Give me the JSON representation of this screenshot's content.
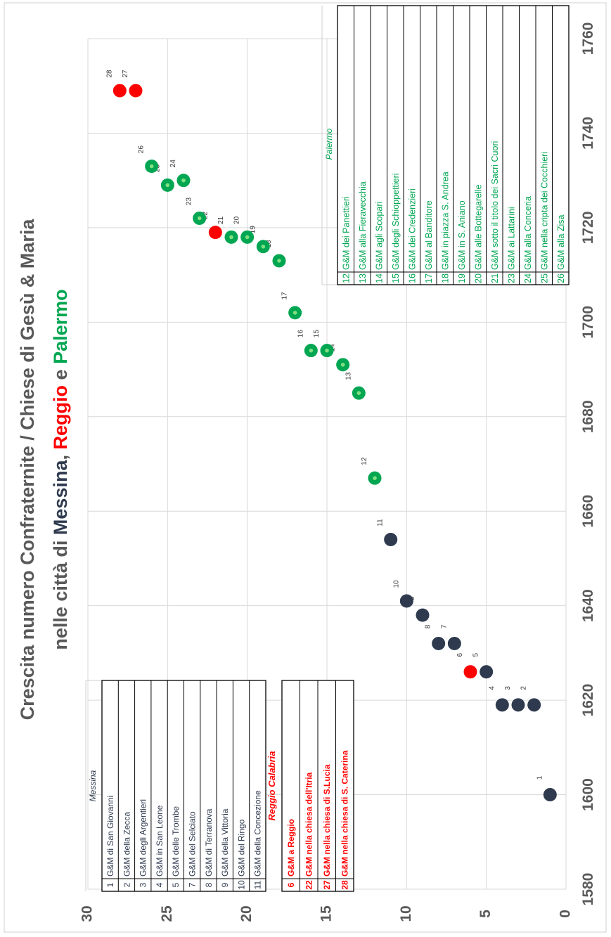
{
  "chart_data": {
    "type": "scatter",
    "title_part1": "Crescita numero  Confraternite / Chiese di Gesù & Maria",
    "title_part2_prefix": "nelle città di",
    "title_city1": "Messina",
    "title_sep1": ",",
    "title_city2": "Reggio",
    "title_sep2": "e",
    "title_city3": "Palermo",
    "xlabel": "",
    "ylabel": "",
    "xlim": [
      1580,
      1760
    ],
    "ylim": [
      0,
      30
    ],
    "x_ticks": [
      "1580",
      "1600",
      "1620",
      "1640",
      "1660",
      "1680",
      "1700",
      "1720",
      "1740",
      "1760"
    ],
    "y_ticks": [
      "0",
      "5",
      "10",
      "15",
      "20",
      "25",
      "30"
    ],
    "grid": true,
    "colors": {
      "Messina": "#2f3a4f",
      "Reggio Calabria": "#ff0000",
      "Palermo": "#00a651",
      "palermo_marker_center": "#7fe07f"
    },
    "points": [
      {
        "label": "1",
        "x": 1600,
        "y": 1,
        "group": "Messina"
      },
      {
        "label": "2",
        "x": 1619,
        "y": 2,
        "group": "Messina"
      },
      {
        "label": "3",
        "x": 1619,
        "y": 3,
        "group": "Messina"
      },
      {
        "label": "4",
        "x": 1619,
        "y": 4,
        "group": "Messina"
      },
      {
        "label": "5",
        "x": 1626,
        "y": 5,
        "group": "Messina"
      },
      {
        "label": "6",
        "x": 1626,
        "y": 6,
        "group": "Reggio Calabria"
      },
      {
        "label": "7",
        "x": 1632,
        "y": 7,
        "group": "Messina"
      },
      {
        "label": "8",
        "x": 1632,
        "y": 8,
        "group": "Messina"
      },
      {
        "label": "9",
        "x": 1638,
        "y": 9,
        "group": "Messina"
      },
      {
        "label": "10",
        "x": 1641,
        "y": 10,
        "group": "Messina"
      },
      {
        "label": "11",
        "x": 1654,
        "y": 11,
        "group": "Messina"
      },
      {
        "label": "12",
        "x": 1667,
        "y": 12,
        "group": "Palermo"
      },
      {
        "label": "13",
        "x": 1685,
        "y": 13,
        "group": "Palermo"
      },
      {
        "label": "14",
        "x": 1691,
        "y": 14,
        "group": "Palermo"
      },
      {
        "label": "15",
        "x": 1694,
        "y": 15,
        "group": "Palermo"
      },
      {
        "label": "16",
        "x": 1694,
        "y": 16,
        "group": "Palermo"
      },
      {
        "label": "17",
        "x": 1702,
        "y": 17,
        "group": "Palermo"
      },
      {
        "label": "18",
        "x": 1713,
        "y": 18,
        "group": "Palermo"
      },
      {
        "label": "19",
        "x": 1716,
        "y": 19,
        "group": "Palermo"
      },
      {
        "label": "20",
        "x": 1718,
        "y": 20,
        "group": "Palermo"
      },
      {
        "label": "21",
        "x": 1718,
        "y": 21,
        "group": "Palermo"
      },
      {
        "label": "22",
        "x": 1719,
        "y": 22,
        "group": "Reggio Calabria"
      },
      {
        "label": "23",
        "x": 1722,
        "y": 23,
        "group": "Palermo"
      },
      {
        "label": "24",
        "x": 1730,
        "y": 24,
        "group": "Palermo"
      },
      {
        "label": "25",
        "x": 1729,
        "y": 25,
        "group": "Palermo"
      },
      {
        "label": "26",
        "x": 1733,
        "y": 26,
        "group": "Palermo"
      },
      {
        "label": "27",
        "x": 1749,
        "y": 27,
        "group": "Reggio Calabria"
      },
      {
        "label": "28",
        "x": 1749,
        "y": 28,
        "group": "Reggio Calabria"
      }
    ],
    "legend_messina": {
      "title": "Messina",
      "rows": [
        {
          "num": "1",
          "name": "G&M di San Giovanni"
        },
        {
          "num": "2",
          "name": "G&M della Zecca"
        },
        {
          "num": "3",
          "name": "G&M degli Argentieri"
        },
        {
          "num": "4",
          "name": "G&M in San Leone"
        },
        {
          "num": "5",
          "name": "G&M delle Trombe"
        },
        {
          "num": "7",
          "name": "G&M del Selciato"
        },
        {
          "num": "8",
          "name": "G&M di Terranova"
        },
        {
          "num": "9",
          "name": "G&M della Vittoria"
        },
        {
          "num": "10",
          "name": "G&M del Ringo"
        },
        {
          "num": "11",
          "name": "G&M della Concezione"
        }
      ]
    },
    "legend_reggio": {
      "title": "Reggio Calabria",
      "rows": [
        {
          "num": "6",
          "name": "G&M a Reggio"
        },
        {
          "num": "22",
          "name": "G&M nella chiesa dell'Itria"
        },
        {
          "num": "27",
          "name": "G&M nella chiesa di S.Lucia"
        },
        {
          "num": "28",
          "name": "G&M nella chiesa di S. Caterina"
        }
      ]
    },
    "legend_palermo": {
      "title": "Palermo",
      "rows": [
        {
          "num": "12",
          "name": "G&M  dei Panettieri"
        },
        {
          "num": "13",
          "name": "G&M  alla Fieravecchia"
        },
        {
          "num": "14",
          "name": "G&M  agli Scopari"
        },
        {
          "num": "15",
          "name": "G&M  degli Schioppettieri"
        },
        {
          "num": "16",
          "name": "G&M  dei Credenzieri"
        },
        {
          "num": "17",
          "name": "G&M  al Banditore"
        },
        {
          "num": "18",
          "name": "G&M  in piazza S. Andrea"
        },
        {
          "num": "19",
          "name": "G&M  in S. Aniano"
        },
        {
          "num": "20",
          "name": "G&M  alle Bottegarelle"
        },
        {
          "num": "21",
          "name": "G&M  sotto il titolo dei Sacri Cuori"
        },
        {
          "num": "23",
          "name": "G&M  ai Lattarini"
        },
        {
          "num": "24",
          "name": "G&M  alla Conceria"
        },
        {
          "num": "25",
          "name": "G&M  nella cripta dei Cocchieri"
        },
        {
          "num": "26",
          "name": "G&M  alla Zisa"
        }
      ]
    }
  }
}
